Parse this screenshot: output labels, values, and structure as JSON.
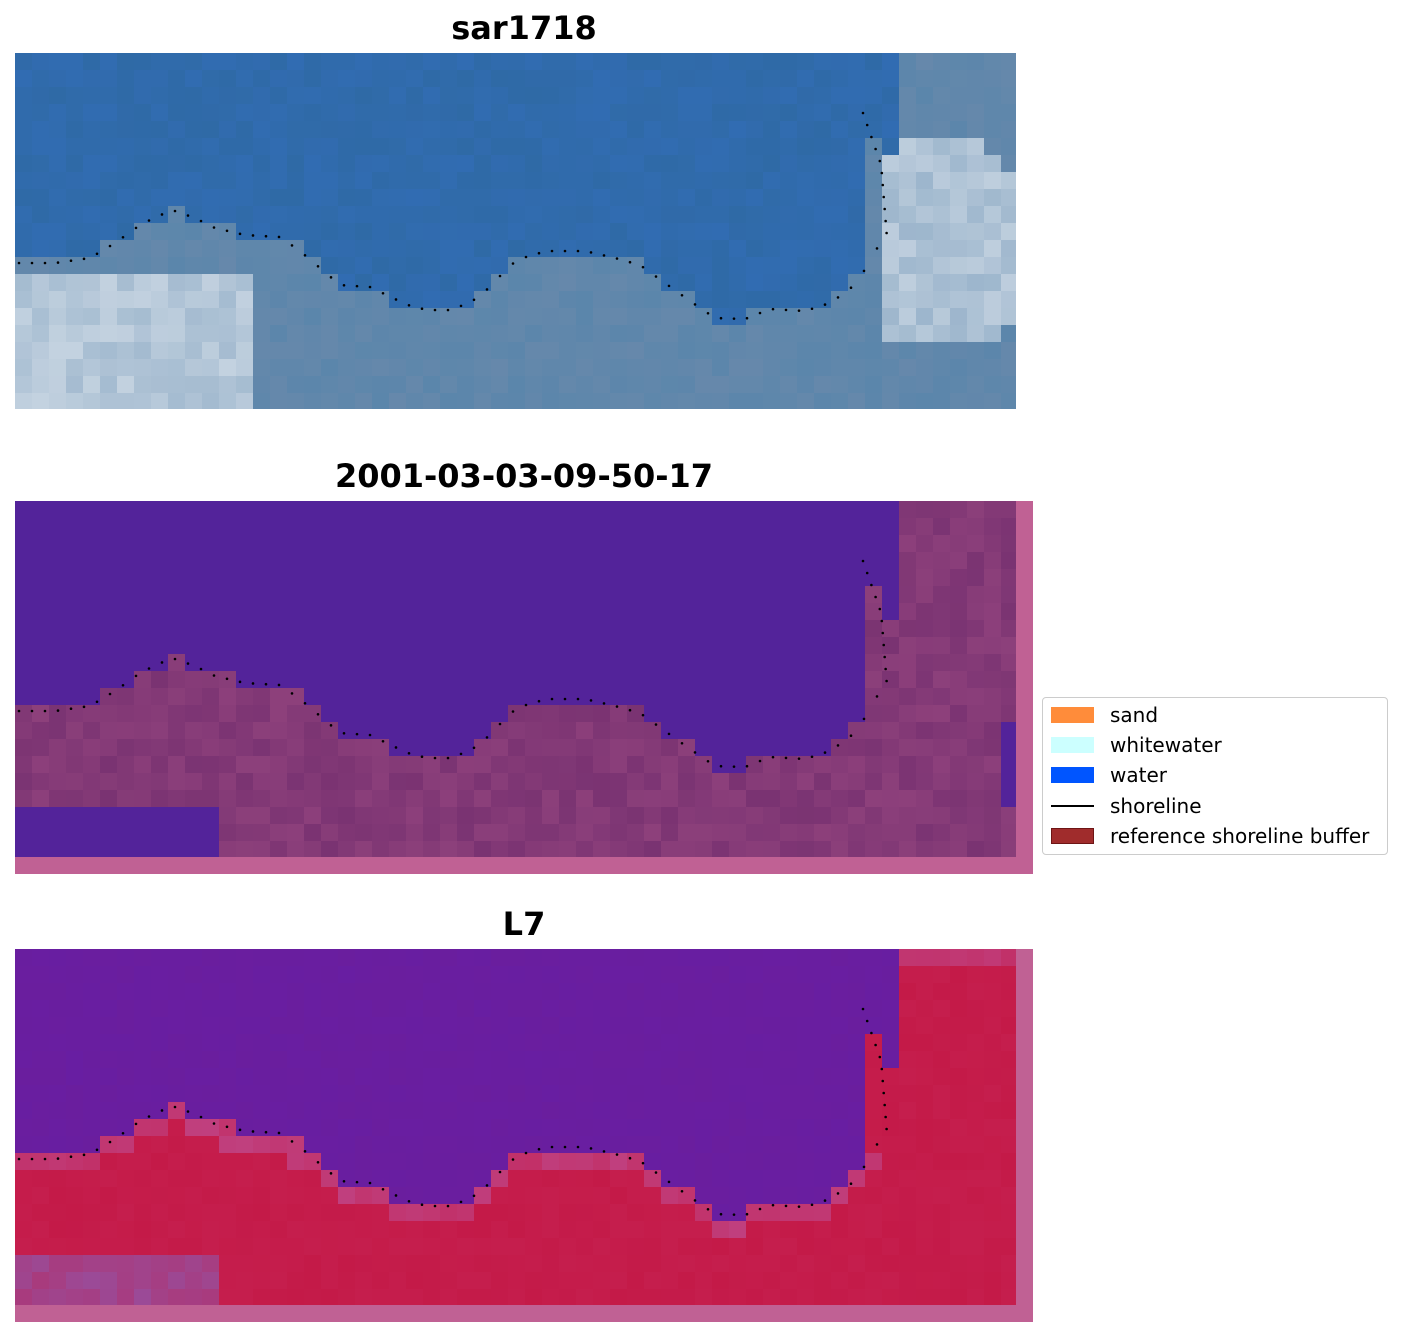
{
  "panels": {
    "title_rgb": "sar1718",
    "title_class": "2001-03-03-09-50-17",
    "title_mndwi": "L7"
  },
  "legend": {
    "items": [
      {
        "label": "sand",
        "kind": "patch",
        "color": "#ff8c3a"
      },
      {
        "label": "whitewater",
        "kind": "patch",
        "color": "#ccffff"
      },
      {
        "label": "water",
        "kind": "patch",
        "color": "#0055ff"
      },
      {
        "label": "shoreline",
        "kind": "line",
        "color": "#000000"
      },
      {
        "label": "reference shoreline buffer",
        "kind": "patch",
        "color": "#a02c2c"
      }
    ]
  },
  "colors": {
    "rgb_water": "#2f6aa6",
    "rgb_shallow": "#5b86ab",
    "rgb_surf": "#dfe6ee",
    "class_water": "#53239a",
    "class_land": "#7a3372",
    "class_border": "#c06194",
    "mndwi_water": "#6a1e9e",
    "mndwi_land": "#c41a48",
    "mndwi_border": "#c06194",
    "shoreline_dots": "#000000"
  }
}
